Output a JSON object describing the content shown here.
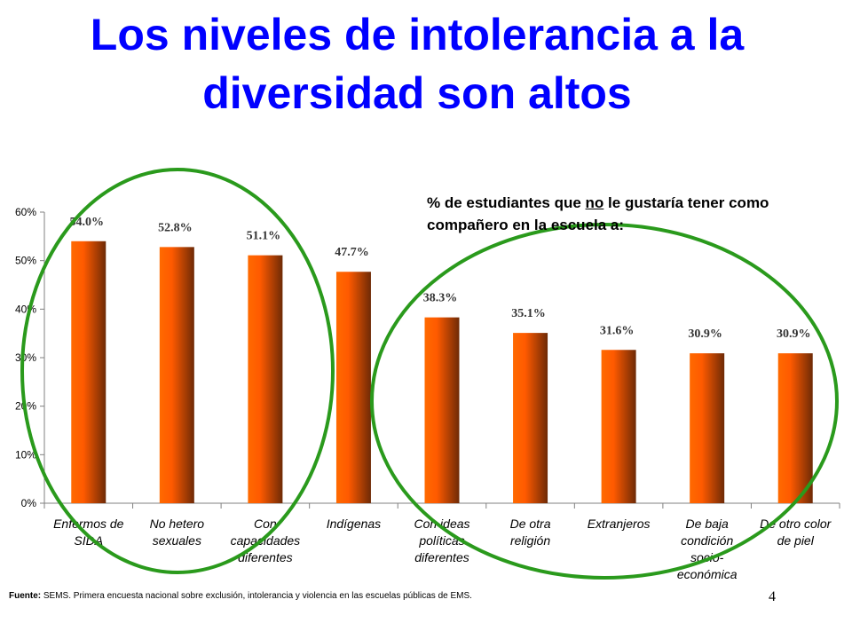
{
  "title_line1": "Los niveles de intolerancia a la",
  "title_line2": "diversidad son altos",
  "subtitle_pre": "% de estudiantes que ",
  "subtitle_underlined": "no",
  "subtitle_post": " le gustaría tener como compañero en la escuela a:",
  "source_label": "Fuente:",
  "source_text": " SEMS. Primera encuesta nacional sobre exclusión, intolerancia y violencia en las escuelas públicas de EMS.",
  "page_number": "4",
  "colors": {
    "title": "#0000ff",
    "bar_light": "#ff6a00",
    "bar_dark": "#6e2a06",
    "circle": "#2a9a1c"
  },
  "chart_data": {
    "type": "bar",
    "categories": [
      [
        "Enfermos de",
        "SIDA"
      ],
      [
        "No hetero",
        "sexuales"
      ],
      [
        "Con",
        "capacidades",
        "diferentes"
      ],
      [
        "Indígenas"
      ],
      [
        "Con ideas",
        "políticas",
        "diferentes"
      ],
      [
        "De otra",
        "religión"
      ],
      [
        "Extranjeros"
      ],
      [
        "De baja",
        "condición",
        "socio-",
        "económica"
      ],
      [
        "De otro color",
        "de piel"
      ]
    ],
    "values": [
      54.0,
      52.8,
      51.1,
      47.7,
      38.3,
      35.1,
      31.6,
      30.9,
      30.9
    ],
    "data_labels": [
      "54.0%",
      "52.8%",
      "51.1%",
      "47.7%",
      "38.3%",
      "35.1%",
      "31.6%",
      "30.9%",
      "30.9%"
    ],
    "y_ticks": [
      0,
      10,
      20,
      30,
      40,
      50,
      60
    ],
    "y_tick_labels": [
      "0%",
      "10%",
      "20%",
      "30%",
      "40%",
      "50%",
      "60%"
    ],
    "ylim": [
      0,
      60
    ],
    "grid": false,
    "legend": "none",
    "annotations": [
      "circle around first three bars",
      "circle around last five bars"
    ]
  }
}
